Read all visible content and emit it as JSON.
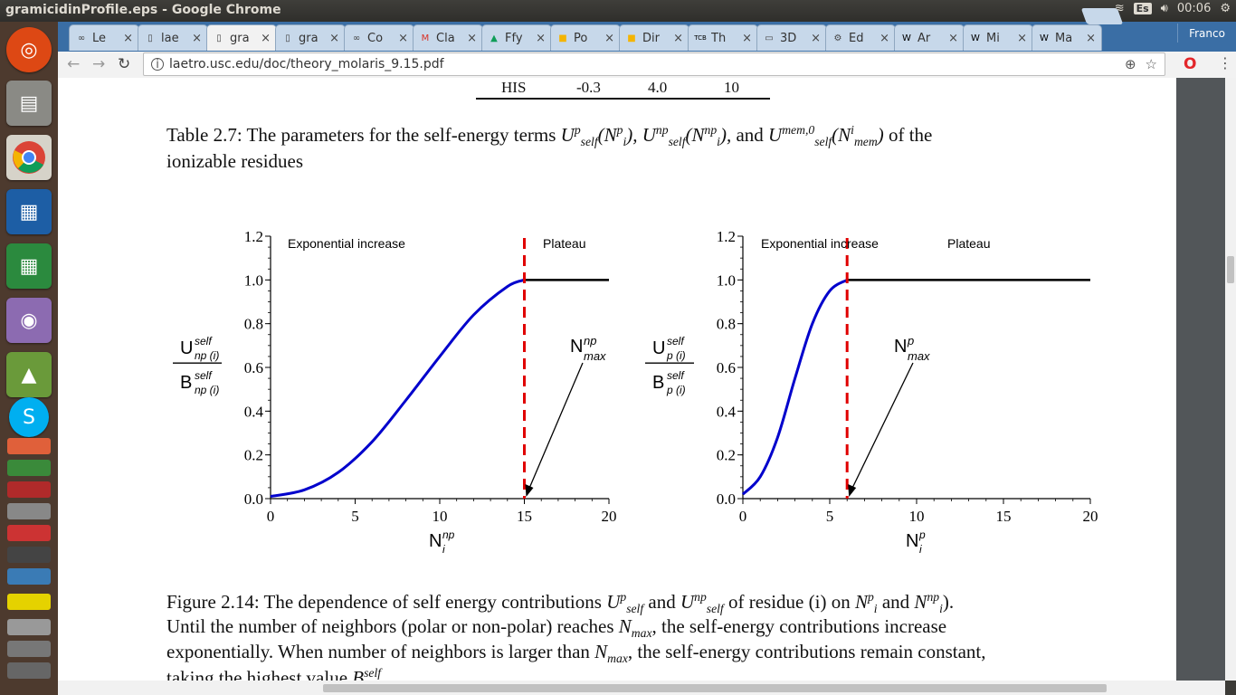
{
  "os": {
    "window_title": "gramicidinProfile.eps - Google Chrome",
    "keyboard_layout": "Es",
    "clock": "00:06"
  },
  "launcher": {
    "items": [
      "ubuntu-dash",
      "files",
      "chrome",
      "writer",
      "calc",
      "software",
      "android-studio",
      "skype",
      "app-a",
      "app-b",
      "app-c",
      "app-d",
      "app-e",
      "app-f"
    ]
  },
  "browser": {
    "tabs": [
      {
        "label": "Le",
        "icon": "link-icon"
      },
      {
        "label": "lae",
        "icon": "doc-icon"
      },
      {
        "label": "gra",
        "icon": "doc-icon",
        "active": true
      },
      {
        "label": "gra",
        "icon": "doc-icon"
      },
      {
        "label": "Co",
        "icon": "link-icon"
      },
      {
        "label": "Cla",
        "icon": "gmail-icon"
      },
      {
        "label": "Ffy",
        "icon": "drive-icon"
      },
      {
        "label": "Po",
        "icon": "slides-icon"
      },
      {
        "label": "Dir",
        "icon": "slides-icon"
      },
      {
        "label": "Th",
        "icon": "tcb-icon"
      },
      {
        "label": "3D",
        "icon": "img-icon"
      },
      {
        "label": "Ed",
        "icon": "gear-icon"
      },
      {
        "label": "Ar",
        "icon": "wiki-icon"
      },
      {
        "label": "Mi",
        "icon": "wiki-icon"
      },
      {
        "label": "Ma",
        "icon": "wiki-icon"
      }
    ],
    "profile_name": "Franco",
    "url": "laetro.usc.edu/doc/theory_molaris_9.15.pdf"
  },
  "pdf": {
    "table_row": {
      "name": "HIS",
      "v1": "-0.3",
      "v2": "4.0",
      "v3": "10"
    },
    "table_caption": "Table 2.7: The parameters for the self-energy terms",
    "caption_tail": "of the ionizable residues",
    "figure_caption_l1a": "Figure 2.14: The dependence of self energy contributions",
    "figure_caption_l1b": "and",
    "figure_caption_l1c": "of residue (i) on",
    "figure_caption_l1d": "and",
    "figure_caption_l2a": "Until the number of neighbors (polar or non-polar) reaches",
    "figure_caption_l2b": ", the self-energy contributions increase",
    "figure_caption_l3a": "exponentially. When number of neighbors is larger than",
    "figure_caption_l3b": ", the self-energy contributions remain constant,",
    "figure_caption_l4": "taking the highest value"
  },
  "chart_data": [
    {
      "type": "line",
      "xlabel": "N_i^np",
      "ylabel": "U_np(i)^self / B_np(i)^self",
      "xlim": [
        0,
        20
      ],
      "ylim": [
        0,
        1.2
      ],
      "xticks": [
        "0",
        "5",
        "10",
        "15",
        "20"
      ],
      "yticks": [
        "0.0",
        "0.2",
        "0.4",
        "0.6",
        "0.8",
        "1.0",
        "1.2"
      ],
      "region_labels": [
        "Exponential increase",
        "Plateau"
      ],
      "annotation": "N_max^np",
      "threshold_x": 15,
      "series": [
        {
          "color": "#0000cc",
          "x": [
            0,
            2,
            4,
            6,
            8,
            10,
            12,
            14,
            15
          ],
          "y": [
            0.01,
            0.04,
            0.12,
            0.26,
            0.45,
            0.65,
            0.84,
            0.97,
            1.0
          ]
        },
        {
          "color": "#000000",
          "x": [
            15,
            20
          ],
          "y": [
            1.0,
            1.0
          ]
        }
      ]
    },
    {
      "type": "line",
      "xlabel": "N_i^p",
      "ylabel": "U_p(i)^self / B_p(i)^self",
      "xlim": [
        0,
        20
      ],
      "ylim": [
        0,
        1.2
      ],
      "xticks": [
        "0",
        "5",
        "10",
        "15",
        "20"
      ],
      "yticks": [
        "0.0",
        "0.2",
        "0.4",
        "0.6",
        "0.8",
        "1.0",
        "1.2"
      ],
      "region_labels": [
        "Exponential increase",
        "Plateau"
      ],
      "annotation": "N_max^p",
      "threshold_x": 6,
      "series": [
        {
          "color": "#0000cc",
          "x": [
            0,
            1,
            2,
            3,
            4,
            5,
            6
          ],
          "y": [
            0.02,
            0.1,
            0.28,
            0.55,
            0.8,
            0.95,
            1.0
          ]
        },
        {
          "color": "#000000",
          "x": [
            6,
            20
          ],
          "y": [
            1.0,
            1.0
          ]
        }
      ]
    }
  ]
}
